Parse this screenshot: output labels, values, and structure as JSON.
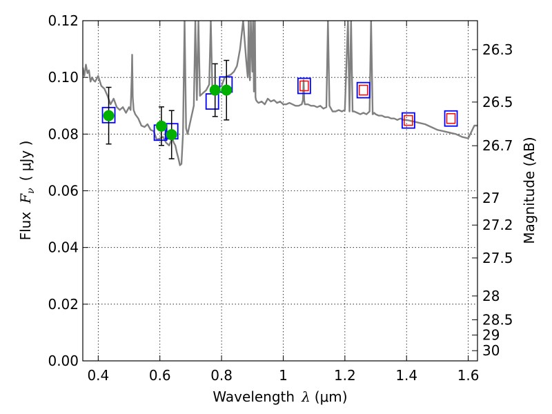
{
  "chart_data": {
    "type": "scatter",
    "title": "",
    "xlabel": "Wavelength",
    "xlabel_symbol": "λ",
    "xlabel_unit": "(μm)",
    "ylabel": "Flux",
    "ylabel_symbol": "F",
    "ylabel_subscript": "ν",
    "ylabel_unit": "( μJy )",
    "y2label": "Magnitude (AB)",
    "xlim": [
      0.35,
      1.63
    ],
    "ylim": [
      0.0,
      0.12
    ],
    "grid": true,
    "x_ticks": [
      0.4,
      0.6,
      0.8,
      1.0,
      1.2,
      1.4,
      1.6
    ],
    "x_tick_labels": [
      "0.4",
      "0.6",
      "0.8",
      "1",
      "1.2",
      "1.4",
      "1.6"
    ],
    "y_ticks": [
      0.0,
      0.02,
      0.04,
      0.06,
      0.08,
      0.1,
      0.12
    ],
    "y_tick_labels": [
      "0.00",
      "0.02",
      "0.04",
      "0.06",
      "0.08",
      "0.10",
      "0.12"
    ],
    "mag_ticks": [
      {
        "label": "26.3",
        "flux": 0.1098
      },
      {
        "label": "26.5",
        "flux": 0.0913
      },
      {
        "label": "26.7",
        "flux": 0.0759
      },
      {
        "label": "27",
        "flux": 0.0575
      },
      {
        "label": "27.2",
        "flux": 0.0479
      },
      {
        "label": "27.5",
        "flux": 0.0363
      },
      {
        "label": "28",
        "flux": 0.0229
      },
      {
        "label": "28.5",
        "flux": 0.0145
      },
      {
        "label": "29",
        "flux": 0.0091
      },
      {
        "label": "30",
        "flux": 0.0036
      }
    ],
    "colors": {
      "sed": "#808080",
      "observed": "#00b000",
      "model_box": "#0000ff",
      "model_inner": "#ff0000",
      "errorbar": "#000000"
    },
    "series": [
      {
        "kind": "line",
        "x": [
          0.35,
          0.355,
          0.36,
          0.365,
          0.37,
          0.375,
          0.38,
          0.385,
          0.39,
          0.4,
          0.41,
          0.42,
          0.43,
          0.44,
          0.45,
          0.46,
          0.47,
          0.48,
          0.49,
          0.5,
          0.505,
          0.507,
          0.509,
          0.51,
          0.512,
          0.515,
          0.52,
          0.53,
          0.54,
          0.55,
          0.56,
          0.57,
          0.58,
          0.59,
          0.6,
          0.61,
          0.62,
          0.63,
          0.64,
          0.645,
          0.65,
          0.655,
          0.66,
          0.665,
          0.67,
          0.675,
          0.68,
          0.685,
          0.69,
          0.7,
          0.71,
          0.715,
          0.72,
          0.725,
          0.73,
          0.74,
          0.75,
          0.76,
          0.765,
          0.77,
          0.775,
          0.78,
          0.785,
          0.79,
          0.8,
          0.81,
          0.82,
          0.83,
          0.84,
          0.85,
          0.86,
          0.87,
          0.88,
          0.885,
          0.888,
          0.89,
          0.892,
          0.895,
          0.9,
          0.902,
          0.905,
          0.908,
          0.91,
          0.912,
          0.915,
          0.92,
          0.93,
          0.94,
          0.95,
          0.96,
          0.97,
          0.98,
          0.99,
          1.0,
          1.01,
          1.02,
          1.03,
          1.04,
          1.05,
          1.06,
          1.064,
          1.066,
          1.068,
          1.07,
          1.08,
          1.09,
          1.1,
          1.11,
          1.12,
          1.13,
          1.14,
          1.145,
          1.15,
          1.155,
          1.16,
          1.17,
          1.18,
          1.19,
          1.2,
          1.21,
          1.215,
          1.22,
          1.225,
          1.23,
          1.24,
          1.25,
          1.26,
          1.27,
          1.28,
          1.285,
          1.29,
          1.295,
          1.3,
          1.31,
          1.32,
          1.33,
          1.34,
          1.35,
          1.36,
          1.37,
          1.38,
          1.39,
          1.4,
          1.42,
          1.44,
          1.46,
          1.48,
          1.5,
          1.52,
          1.54,
          1.56,
          1.58,
          1.6,
          1.62,
          1.63
        ],
        "y": [
          0.1035,
          0.1005,
          0.1045,
          0.1015,
          0.1025,
          0.0985,
          0.1,
          0.099,
          0.0985,
          0.1005,
          0.097,
          0.096,
          0.0935,
          0.0905,
          0.0925,
          0.0895,
          0.0885,
          0.0895,
          0.0875,
          0.0895,
          0.0885,
          0.095,
          0.102,
          0.108,
          0.093,
          0.0885,
          0.087,
          0.0855,
          0.083,
          0.0825,
          0.0835,
          0.0815,
          0.081,
          0.078,
          0.0785,
          0.079,
          0.077,
          0.076,
          0.0785,
          0.077,
          0.076,
          0.0735,
          0.0715,
          0.069,
          0.0695,
          0.08,
          0.12,
          0.082,
          0.08,
          0.085,
          0.09,
          0.12,
          0.092,
          0.12,
          0.0935,
          0.0945,
          0.0955,
          0.0975,
          0.12,
          0.096,
          0.095,
          0.0945,
          0.0955,
          0.0965,
          0.097,
          0.1,
          0.1005,
          0.101,
          0.102,
          0.104,
          0.11,
          0.12,
          0.106,
          0.1,
          0.12,
          0.103,
          0.099,
          0.12,
          0.102,
          0.12,
          0.095,
          0.12,
          0.093,
          0.092,
          0.0915,
          0.091,
          0.0915,
          0.0905,
          0.0925,
          0.0915,
          0.092,
          0.091,
          0.0915,
          0.0905,
          0.0905,
          0.091,
          0.0905,
          0.09,
          0.09,
          0.0905,
          0.092,
          0.099,
          0.092,
          0.0905,
          0.0905,
          0.09,
          0.09,
          0.0895,
          0.09,
          0.089,
          0.0895,
          0.12,
          0.09,
          0.089,
          0.088,
          0.088,
          0.0885,
          0.088,
          0.0885,
          0.12,
          0.088,
          0.12,
          0.088,
          0.088,
          0.0875,
          0.087,
          0.0875,
          0.087,
          0.088,
          0.12,
          0.087,
          0.0875,
          0.087,
          0.0865,
          0.0865,
          0.086,
          0.086,
          0.0855,
          0.0855,
          0.085,
          0.0855,
          0.085,
          0.085,
          0.0845,
          0.084,
          0.0835,
          0.0825,
          0.0815,
          0.081,
          0.0805,
          0.08,
          0.079,
          0.0785,
          0.083,
          0.083
        ]
      },
      {
        "kind": "model_boxes",
        "x": [
          0.434,
          0.602,
          0.638,
          0.77,
          0.814,
          1.068,
          1.26,
          1.406,
          1.544
        ],
        "y": [
          0.0867,
          0.0805,
          0.081,
          0.0915,
          0.0975,
          0.097,
          0.0955,
          0.0848,
          0.0855
        ]
      },
      {
        "kind": "model_inner",
        "x": [
          1.068,
          1.26,
          1.406,
          1.544
        ],
        "y": [
          0.097,
          0.0955,
          0.0848,
          0.0855
        ]
      },
      {
        "kind": "observed",
        "x": [
          0.434,
          0.605,
          0.638,
          0.779,
          0.816
        ],
        "y": [
          0.0865,
          0.0828,
          0.0798,
          0.0955,
          0.0955
        ],
        "yerr": [
          0.01,
          0.0068,
          0.0085,
          0.0093,
          0.0105
        ]
      }
    ]
  }
}
